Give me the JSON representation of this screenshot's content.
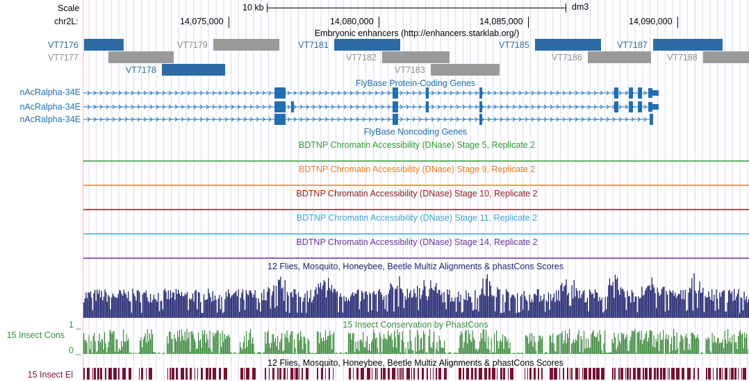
{
  "scale": {
    "label": "Scale",
    "chrom": "chr2L:",
    "bar_label": "10 kb",
    "assembly": "dm3"
  },
  "ruler_ticks": [
    "14,075,000",
    "14,080,000",
    "14,085,000",
    "14,090,000"
  ],
  "tracks": {
    "enhancers": {
      "title": "Embryonic enhancers (http://enhancers.starklab.org/)",
      "items": [
        {
          "name": "VT7176",
          "color": "blue"
        },
        {
          "name": "VT7177",
          "color": "gray"
        },
        {
          "name": "VT7178",
          "color": "blue"
        },
        {
          "name": "VT7179",
          "color": "gray"
        },
        {
          "name": "VT7181",
          "color": "blue"
        },
        {
          "name": "VT7182",
          "color": "gray"
        },
        {
          "name": "VT7183",
          "color": "gray"
        },
        {
          "name": "VT7185",
          "color": "blue"
        },
        {
          "name": "VT7186",
          "color": "gray"
        },
        {
          "name": "VT7187",
          "color": "blue"
        },
        {
          "name": "VT7188",
          "color": "gray"
        }
      ]
    },
    "genes": {
      "title": "FlyBase Protein-Coding Genes",
      "transcripts": [
        "nAcRalpha-34E",
        "nAcRalpha-34E",
        "nAcRalpha-34E"
      ]
    },
    "noncoding": {
      "title": "FlyBase Noncoding Genes"
    },
    "dnase": [
      {
        "title": "BDTNP Chromatin Accessibility (DNase) Stage 5, Replicate 2",
        "color": "#2f9a2f"
      },
      {
        "title": "BDTNP Chromatin Accessibility (DNase) Stage 9, Replicate 2",
        "color": "#f07a1a"
      },
      {
        "title": "BDTNP Chromatin Accessibility (DNase) Stage 10, Replicate 2",
        "color": "#8a1a1a"
      },
      {
        "title": "BDTNP Chromatin Accessibility (DNase) Stage 11, Replicate 2",
        "color": "#3fa3d6"
      },
      {
        "title": "BDTNP Chromatin Accessibility (DNase) Stage 14, Replicate 2",
        "color": "#6a2fa0"
      }
    ],
    "multiz": {
      "title": "12 Flies, Mosquito, Honeybee, Beetle Multiz Alignments & phastCons Scores",
      "color": "#1a1f6b"
    },
    "phastcons": {
      "title": "15 Insect Conservation by PhastCons",
      "side_label": "15 Insect Cons",
      "axis_max": "1 _",
      "axis_min": "0 _",
      "color": "#3a8a3a"
    },
    "elements": {
      "title": "12 Flies, Mosquito, Honeybee, Beetle Multiz Alignments & phastCons Scores",
      "side_label": "15 Insect El",
      "color": "#7a1030"
    }
  },
  "colors": {
    "guide_line": "#d4d4f0",
    "left_margin": "#f4b8b8",
    "gene": "#1f6fb4",
    "enh_blue": "#2e6ba4",
    "enh_gray": "#9a9a9a"
  }
}
